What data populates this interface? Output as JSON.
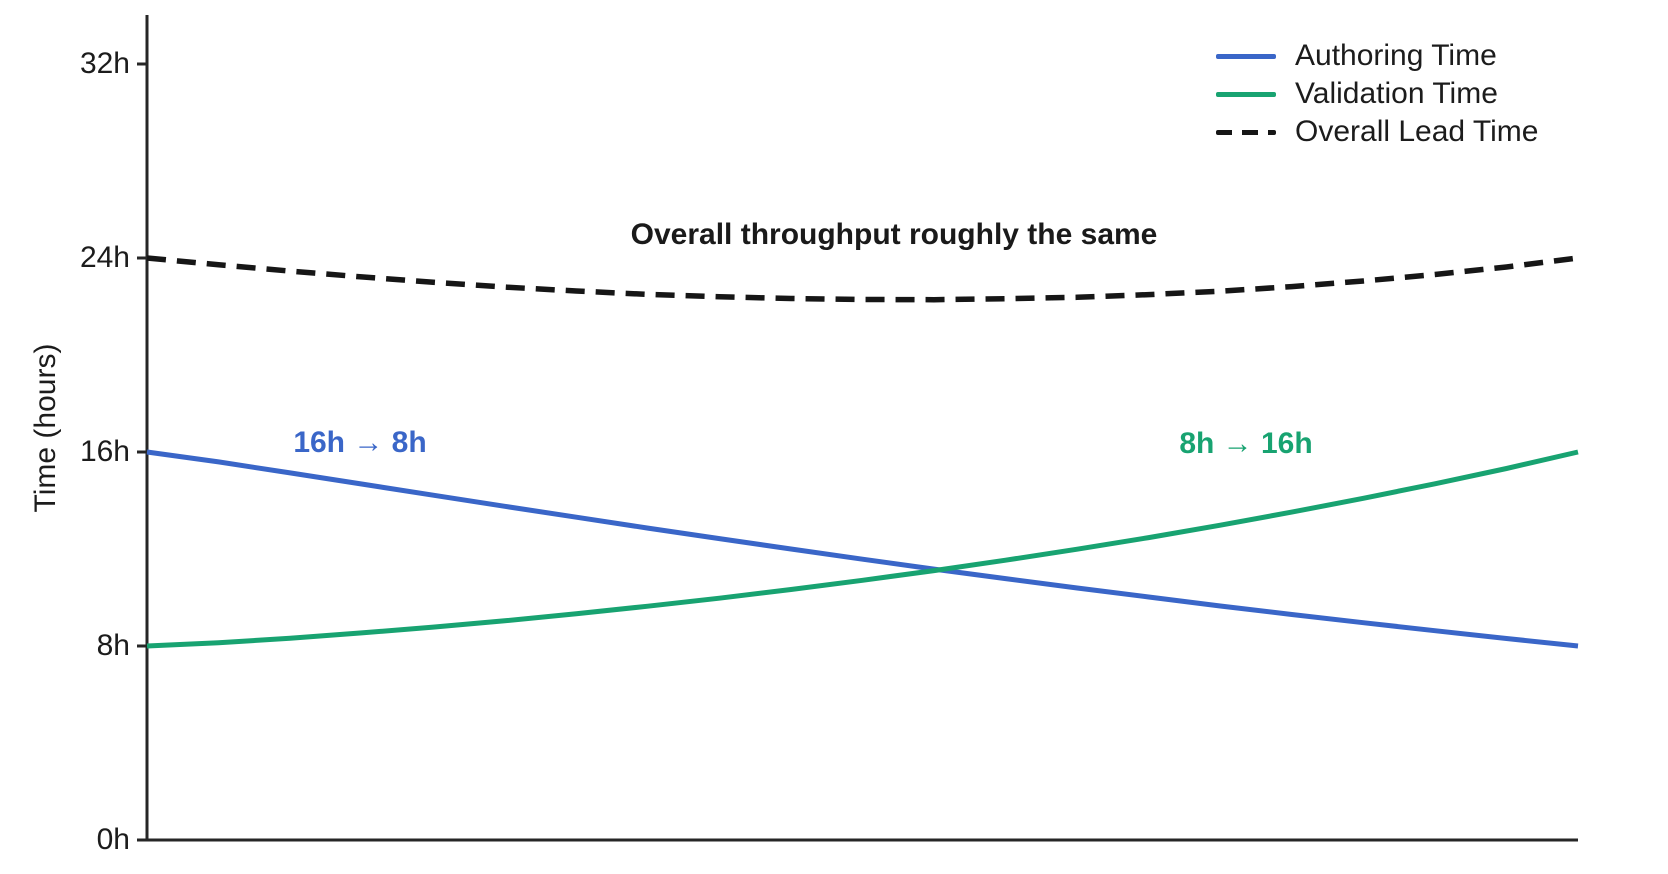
{
  "figure": {
    "background": "#ffffff"
  },
  "chart_data": {
    "type": "line",
    "title": "",
    "xlabel": "",
    "ylabel": "Time (hours)",
    "xticks": [],
    "yticks": [
      {
        "label": "0h",
        "value": 0
      },
      {
        "label": "8h",
        "value": 8
      },
      {
        "label": "16h",
        "value": 16
      },
      {
        "label": "24h",
        "value": 24
      },
      {
        "label": "32h",
        "value": 32
      }
    ],
    "ylim": [
      0,
      34
    ],
    "x_normalized_range": [
      0,
      1
    ],
    "grid": false,
    "legend_position": "upper right",
    "axis_color": "#262626",
    "series": [
      {
        "name": "Authoring Time",
        "color": "#3a66c8",
        "style": "solid",
        "values": [
          16.0,
          15.59,
          15.14,
          14.68,
          14.22,
          13.76,
          13.31,
          12.86,
          12.43,
          12.0,
          11.58,
          11.17,
          10.78,
          10.39,
          10.02,
          9.65,
          9.3,
          8.96,
          8.63,
          8.31,
          8.0
        ]
      },
      {
        "name": "Validation Time",
        "color": "#18a371",
        "style": "solid",
        "values": [
          8.0,
          8.13,
          8.32,
          8.54,
          8.78,
          9.04,
          9.33,
          9.64,
          9.97,
          10.33,
          10.71,
          11.11,
          11.54,
          11.99,
          12.47,
          12.98,
          13.52,
          14.09,
          14.69,
          15.32,
          16.0
        ]
      },
      {
        "name": "Overall Lead Time",
        "color": "#161616",
        "style": "dashed",
        "values": [
          24.0,
          23.72,
          23.46,
          23.22,
          23.0,
          22.8,
          22.64,
          22.5,
          22.4,
          22.33,
          22.29,
          22.28,
          22.32,
          22.38,
          22.49,
          22.63,
          22.82,
          23.05,
          23.32,
          23.63,
          24.0
        ]
      }
    ],
    "annotations": {
      "throughput": {
        "text": "Overall throughput roughly the same",
        "color": "#1a1a1a"
      },
      "authoring": {
        "text": "16h → 8h",
        "color": "#3a66c8"
      },
      "validation": {
        "text": "8h → 16h",
        "color": "#18a371"
      }
    }
  }
}
